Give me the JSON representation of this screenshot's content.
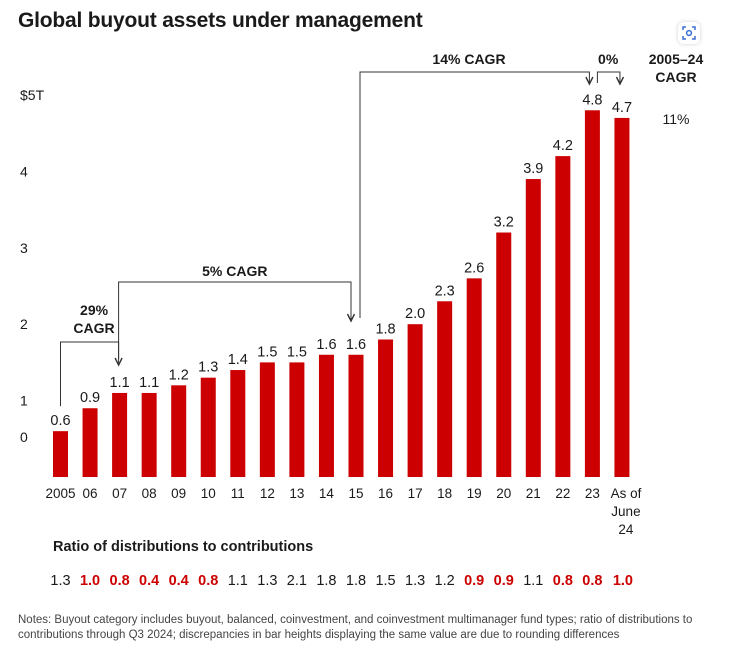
{
  "title": "Global buyout assets under management",
  "colors": {
    "bar": "#cc0000",
    "text": "#1a1a1a",
    "accent": "#cc0000",
    "notes": "#444444"
  },
  "icons": {
    "lens": "image-search-icon"
  },
  "chart_data": {
    "type": "bar",
    "title": "Global buyout assets under management",
    "categories": [
      "2005",
      "06",
      "07",
      "08",
      "09",
      "10",
      "11",
      "12",
      "13",
      "14",
      "15",
      "16",
      "17",
      "18",
      "19",
      "20",
      "21",
      "22",
      "23",
      "As of June 24"
    ],
    "values": [
      0.6,
      0.9,
      1.1,
      1.1,
      1.2,
      1.3,
      1.4,
      1.5,
      1.5,
      1.6,
      1.6,
      1.8,
      2.0,
      2.3,
      2.6,
      3.2,
      3.9,
      4.2,
      4.8,
      4.7
    ],
    "value_labels": [
      "0.6",
      "0.9",
      "1.1",
      "1.1",
      "1.2",
      "1.3",
      "1.4",
      "1.5",
      "1.5",
      "1.6",
      "1.6",
      "1.8",
      "2.0",
      "2.3",
      "2.6",
      "3.2",
      "3.9",
      "4.2",
      "4.8",
      "4.7"
    ],
    "y_ticks": [
      {
        "value": 0,
        "label": "0"
      },
      {
        "value": 1,
        "label": "1"
      },
      {
        "value": 2,
        "label": "2"
      },
      {
        "value": 3,
        "label": "3"
      },
      {
        "value": 4,
        "label": "4"
      },
      {
        "value": 5,
        "label": "$5T"
      }
    ],
    "ylim": [
      0,
      5
    ],
    "grid": false,
    "annotations": [
      {
        "text": "29% CAGR",
        "from": "2005",
        "to": "07"
      },
      {
        "text": "5% CAGR",
        "from": "07",
        "to": "15"
      },
      {
        "text": "14% CAGR",
        "from": "15",
        "to": "23"
      },
      {
        "text": "0%",
        "from": "23",
        "to": "As of June 24"
      }
    ],
    "side_note": {
      "label": "2005–24 CAGR",
      "value": "11%"
    }
  },
  "ratios": {
    "title": "Ratio of distributions to contributions",
    "values": [
      {
        "text": "1.3",
        "highlight": false
      },
      {
        "text": "1.0",
        "highlight": true
      },
      {
        "text": "0.8",
        "highlight": true
      },
      {
        "text": "0.4",
        "highlight": true
      },
      {
        "text": "0.4",
        "highlight": true
      },
      {
        "text": "0.8",
        "highlight": true
      },
      {
        "text": "1.1",
        "highlight": false
      },
      {
        "text": "1.3",
        "highlight": false
      },
      {
        "text": "2.1",
        "highlight": false
      },
      {
        "text": "1.8",
        "highlight": false
      },
      {
        "text": "1.8",
        "highlight": false
      },
      {
        "text": "1.5",
        "highlight": false
      },
      {
        "text": "1.3",
        "highlight": false
      },
      {
        "text": "1.2",
        "highlight": false
      },
      {
        "text": "0.9",
        "highlight": true
      },
      {
        "text": "0.9",
        "highlight": true
      },
      {
        "text": "1.1",
        "highlight": false
      },
      {
        "text": "0.8",
        "highlight": true
      },
      {
        "text": "0.8",
        "highlight": true
      },
      {
        "text": "1.0",
        "highlight": true
      }
    ]
  },
  "notes": "Notes: Buyout category includes buyout, balanced, coinvestment, and coinvestment multimanager fund types; ratio of distributions to contributions through Q3 2024; discrepancies in bar heights displaying the same value are due to rounding differences"
}
